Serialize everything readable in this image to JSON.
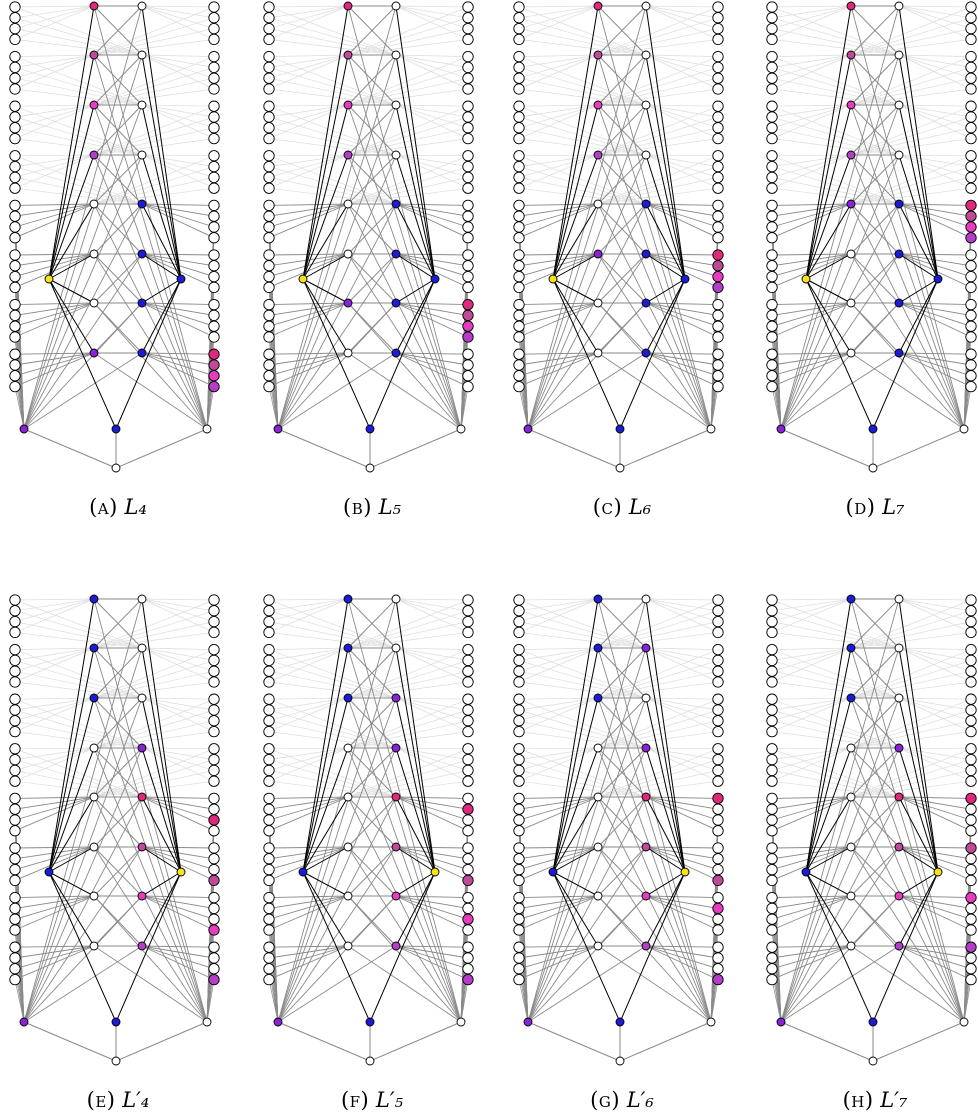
{
  "figure": {
    "panels": [
      {
        "id": "A",
        "letter": "(a)",
        "label": "L₄"
      },
      {
        "id": "B",
        "letter": "(b)",
        "label": "L₅"
      },
      {
        "id": "C",
        "letter": "(c)",
        "label": "L₆"
      },
      {
        "id": "D",
        "letter": "(d)",
        "label": "L₇"
      },
      {
        "id": "E",
        "letter": "(e)",
        "label": "L′₄"
      },
      {
        "id": "F",
        "letter": "(f)",
        "label": "L′₅"
      },
      {
        "id": "G",
        "letter": "(g)",
        "label": "L′₆"
      },
      {
        "id": "H",
        "letter": "(h)",
        "label": "L′₇"
      }
    ]
  },
  "colors": {
    "edge_black": "#000000",
    "edge_gray": "#8a8a8a",
    "edge_light": "#dcdcdc",
    "node_empty": "#ffffff",
    "blue": "#1c1cd6",
    "purple": "#8a22d8",
    "magenta": "#e0287e",
    "mauve": "#c04a9a",
    "pink": "#e83cc0",
    "orchid": "#b53ec9",
    "yellow": "#f4e21a"
  }
}
